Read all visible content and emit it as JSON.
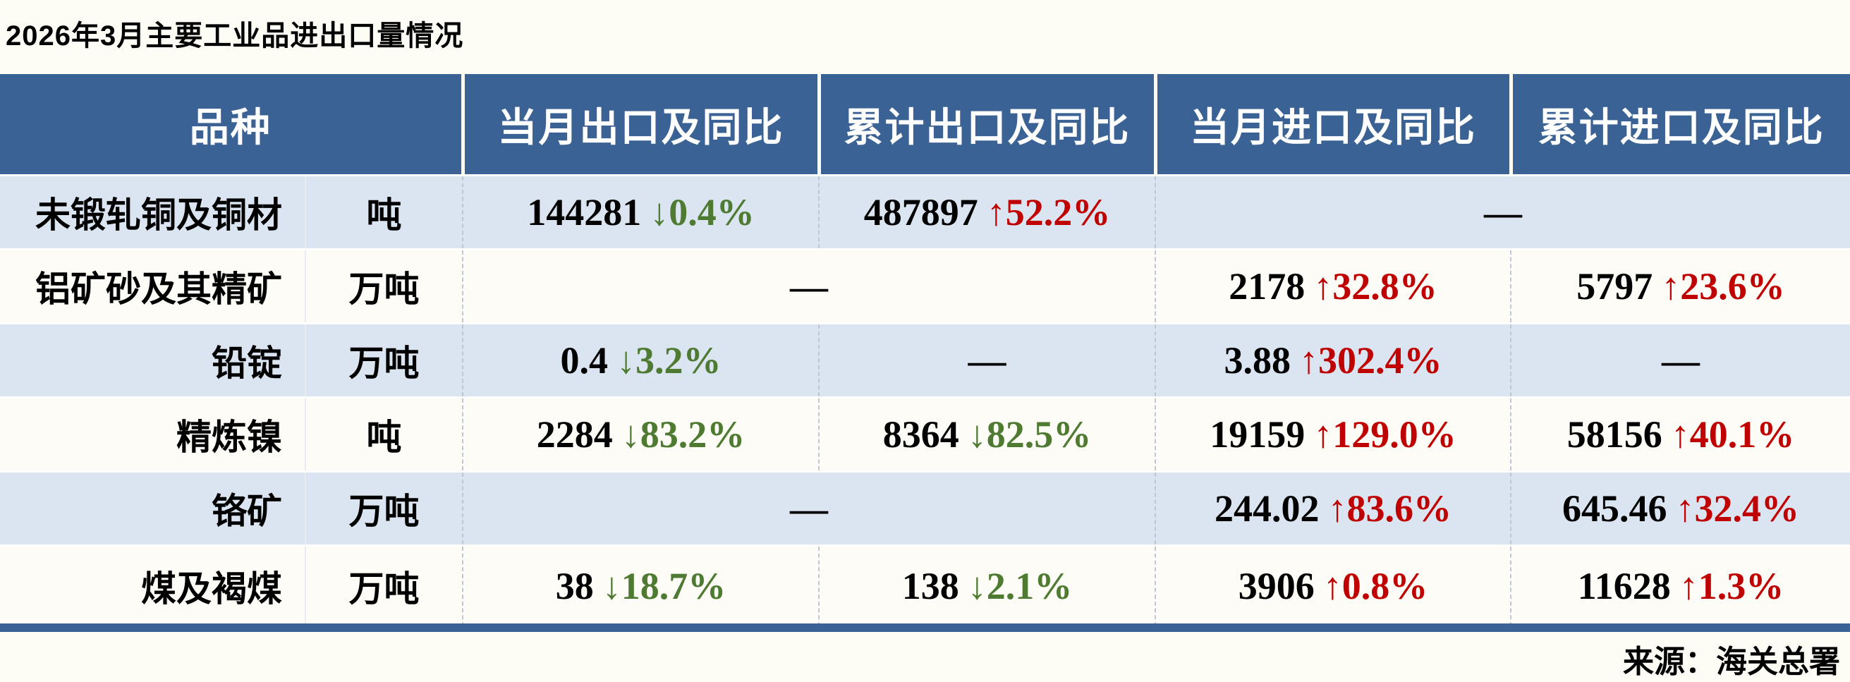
{
  "title": "2026年3月主要工业品进出口量情况",
  "source": "来源：海关总署",
  "glyphs": {
    "up_arrow": "↑",
    "down_arrow": "↓",
    "dash": "—"
  },
  "colors": {
    "page_bg": "#FDFCF5",
    "header_bg": "#3B6294",
    "alt_row_bg": "#DBE5F1",
    "row_bg": "#FDFCF6",
    "accent_bar": "#3B6294",
    "up": "#C00000",
    "down": "#4E7B31",
    "header_text": "#FFFFFF",
    "text": "#000000"
  },
  "chart_data": {
    "type": "table",
    "title": "2026年3月主要工业品进出口量情况",
    "columns": [
      "品种",
      "当月出口及同比",
      "累计出口及同比",
      "当月进口及同比",
      "累计进口及同比"
    ],
    "rows": [
      {
        "name": "未锻轧铜及铜材",
        "unit": "吨",
        "cells": [
          {
            "value": "144281",
            "dir": "down",
            "pct": "0.4%"
          },
          {
            "value": "487897",
            "dir": "up",
            "pct": "52.2%"
          },
          {
            "dash": true,
            "span": 2
          }
        ]
      },
      {
        "name": "铝矿砂及其精矿",
        "unit": "万吨",
        "cells": [
          {
            "dash": true,
            "span": 2
          },
          {
            "value": "2178",
            "dir": "up",
            "pct": "32.8%"
          },
          {
            "value": "5797",
            "dir": "up",
            "pct": "23.6%"
          }
        ]
      },
      {
        "name": "铅锭",
        "unit": "万吨",
        "cells": [
          {
            "value": "0.4",
            "dir": "down",
            "pct": "3.2%"
          },
          {
            "dash": true,
            "span": 1
          },
          {
            "value": "3.88",
            "dir": "up",
            "pct": "302.4%"
          },
          {
            "dash": true,
            "span": 1
          }
        ]
      },
      {
        "name": "精炼镍",
        "unit": "吨",
        "cells": [
          {
            "value": "2284",
            "dir": "down",
            "pct": "83.2%"
          },
          {
            "value": "8364",
            "dir": "down",
            "pct": "82.5%"
          },
          {
            "value": "19159",
            "dir": "up",
            "pct": "129.0%"
          },
          {
            "value": "58156",
            "dir": "up",
            "pct": "40.1%"
          }
        ]
      },
      {
        "name": "铬矿",
        "unit": "万吨",
        "cells": [
          {
            "dash": true,
            "span": 2
          },
          {
            "value": "244.02",
            "dir": "up",
            "pct": "83.6%"
          },
          {
            "value": "645.46",
            "dir": "up",
            "pct": "32.4%"
          }
        ]
      },
      {
        "name": "煤及褐煤",
        "unit": "万吨",
        "cells": [
          {
            "value": "38",
            "dir": "down",
            "pct": "18.7%"
          },
          {
            "value": "138",
            "dir": "down",
            "pct": "2.1%"
          },
          {
            "value": "3906",
            "dir": "up",
            "pct": "0.8%"
          },
          {
            "value": "11628",
            "dir": "up",
            "pct": "1.3%"
          }
        ]
      }
    ]
  }
}
